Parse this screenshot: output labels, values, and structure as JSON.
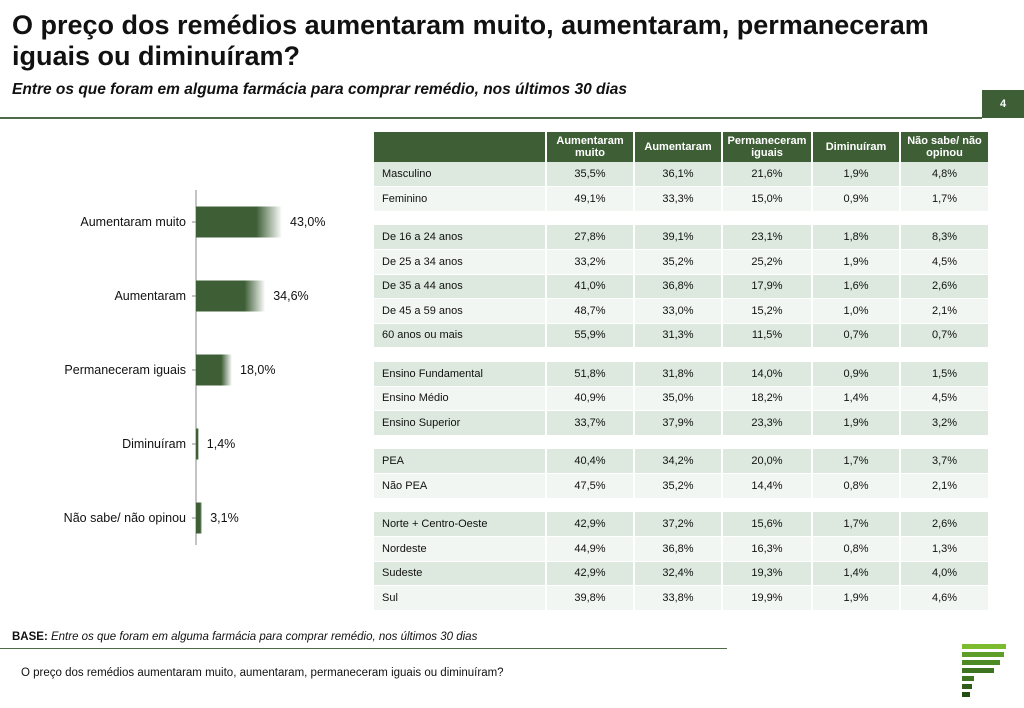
{
  "page": {
    "title": "O preço dos remédios aumentaram muito, aumentaram, permaneceram iguais ou diminuíram?",
    "subtitle": "Entre os que foram em alguma farmácia  para comprar remédio, nos últimos 30 dias",
    "page_number": "4",
    "base_label": "BASE:",
    "base_text": "Entre os que foram em alguma farmácia para comprar remédio, nos últimos 30 dias",
    "footer_question": "O preço dos remédios aumentaram muito, aumentaram, permaneceram iguais ou diminuíram?"
  },
  "colors": {
    "bar_dark": "#3e5e36",
    "bar_light": "#ffffff",
    "header_bg": "#3e5e36",
    "row_odd": "#dde9de",
    "row_even": "#f2f6f2"
  },
  "chart_data": [
    {
      "type": "bar",
      "orientation": "horizontal",
      "categories": [
        "Aumentaram muito",
        "Aumentaram",
        "Permaneceram iguais",
        "Diminuíram",
        "Não sabe/ não opinou"
      ],
      "values": [
        43.0,
        34.6,
        18.0,
        1.4,
        3.1
      ],
      "value_labels": [
        "43,0%",
        "34,6%",
        "18,0%",
        "1,4%",
        "3,1%"
      ],
      "xlim": [
        0,
        100
      ],
      "grid": false,
      "legend": "none"
    },
    {
      "type": "table",
      "columns": [
        "",
        "Aumentaram muito",
        "Aumentaram",
        "Permaneceram iguais",
        "Diminuíram",
        "Não sabe/ não opinou"
      ],
      "groups": [
        {
          "rows": [
            {
              "label": "Masculino",
              "values": [
                "35,5%",
                "36,1%",
                "21,6%",
                "1,9%",
                "4,8%"
              ]
            },
            {
              "label": "Feminino",
              "values": [
                "49,1%",
                "33,3%",
                "15,0%",
                "0,9%",
                "1,7%"
              ]
            }
          ]
        },
        {
          "rows": [
            {
              "label": "De 16 a 24 anos",
              "values": [
                "27,8%",
                "39,1%",
                "23,1%",
                "1,8%",
                "8,3%"
              ]
            },
            {
              "label": "De 25 a 34 anos",
              "values": [
                "33,2%",
                "35,2%",
                "25,2%",
                "1,9%",
                "4,5%"
              ]
            },
            {
              "label": "De 35 a 44 anos",
              "values": [
                "41,0%",
                "36,8%",
                "17,9%",
                "1,6%",
                "2,6%"
              ]
            },
            {
              "label": "De 45 a 59 anos",
              "values": [
                "48,7%",
                "33,0%",
                "15,2%",
                "1,0%",
                "2,1%"
              ]
            },
            {
              "label": "60 anos ou mais",
              "values": [
                "55,9%",
                "31,3%",
                "11,5%",
                "0,7%",
                "0,7%"
              ]
            }
          ]
        },
        {
          "rows": [
            {
              "label": "Ensino Fundamental",
              "values": [
                "51,8%",
                "31,8%",
                "14,0%",
                "0,9%",
                "1,5%"
              ]
            },
            {
              "label": "Ensino Médio",
              "values": [
                "40,9%",
                "35,0%",
                "18,2%",
                "1,4%",
                "4,5%"
              ]
            },
            {
              "label": "Ensino Superior",
              "values": [
                "33,7%",
                "37,9%",
                "23,3%",
                "1,9%",
                "3,2%"
              ]
            }
          ]
        },
        {
          "rows": [
            {
              "label": "PEA",
              "values": [
                "40,4%",
                "34,2%",
                "20,0%",
                "1,7%",
                "3,7%"
              ]
            },
            {
              "label": "Não PEA",
              "values": [
                "47,5%",
                "35,2%",
                "14,4%",
                "0,8%",
                "2,1%"
              ]
            }
          ]
        },
        {
          "rows": [
            {
              "label": "Norte + Centro-Oeste",
              "values": [
                "42,9%",
                "37,2%",
                "15,6%",
                "1,7%",
                "2,6%"
              ]
            },
            {
              "label": "Nordeste",
              "values": [
                "44,9%",
                "36,8%",
                "16,3%",
                "0,8%",
                "1,3%"
              ]
            },
            {
              "label": "Sudeste",
              "values": [
                "42,9%",
                "32,4%",
                "19,3%",
                "1,4%",
                "4,0%"
              ]
            },
            {
              "label": "Sul",
              "values": [
                "39,8%",
                "33,8%",
                "19,9%",
                "1,9%",
                "4,6%"
              ]
            }
          ]
        }
      ]
    }
  ]
}
